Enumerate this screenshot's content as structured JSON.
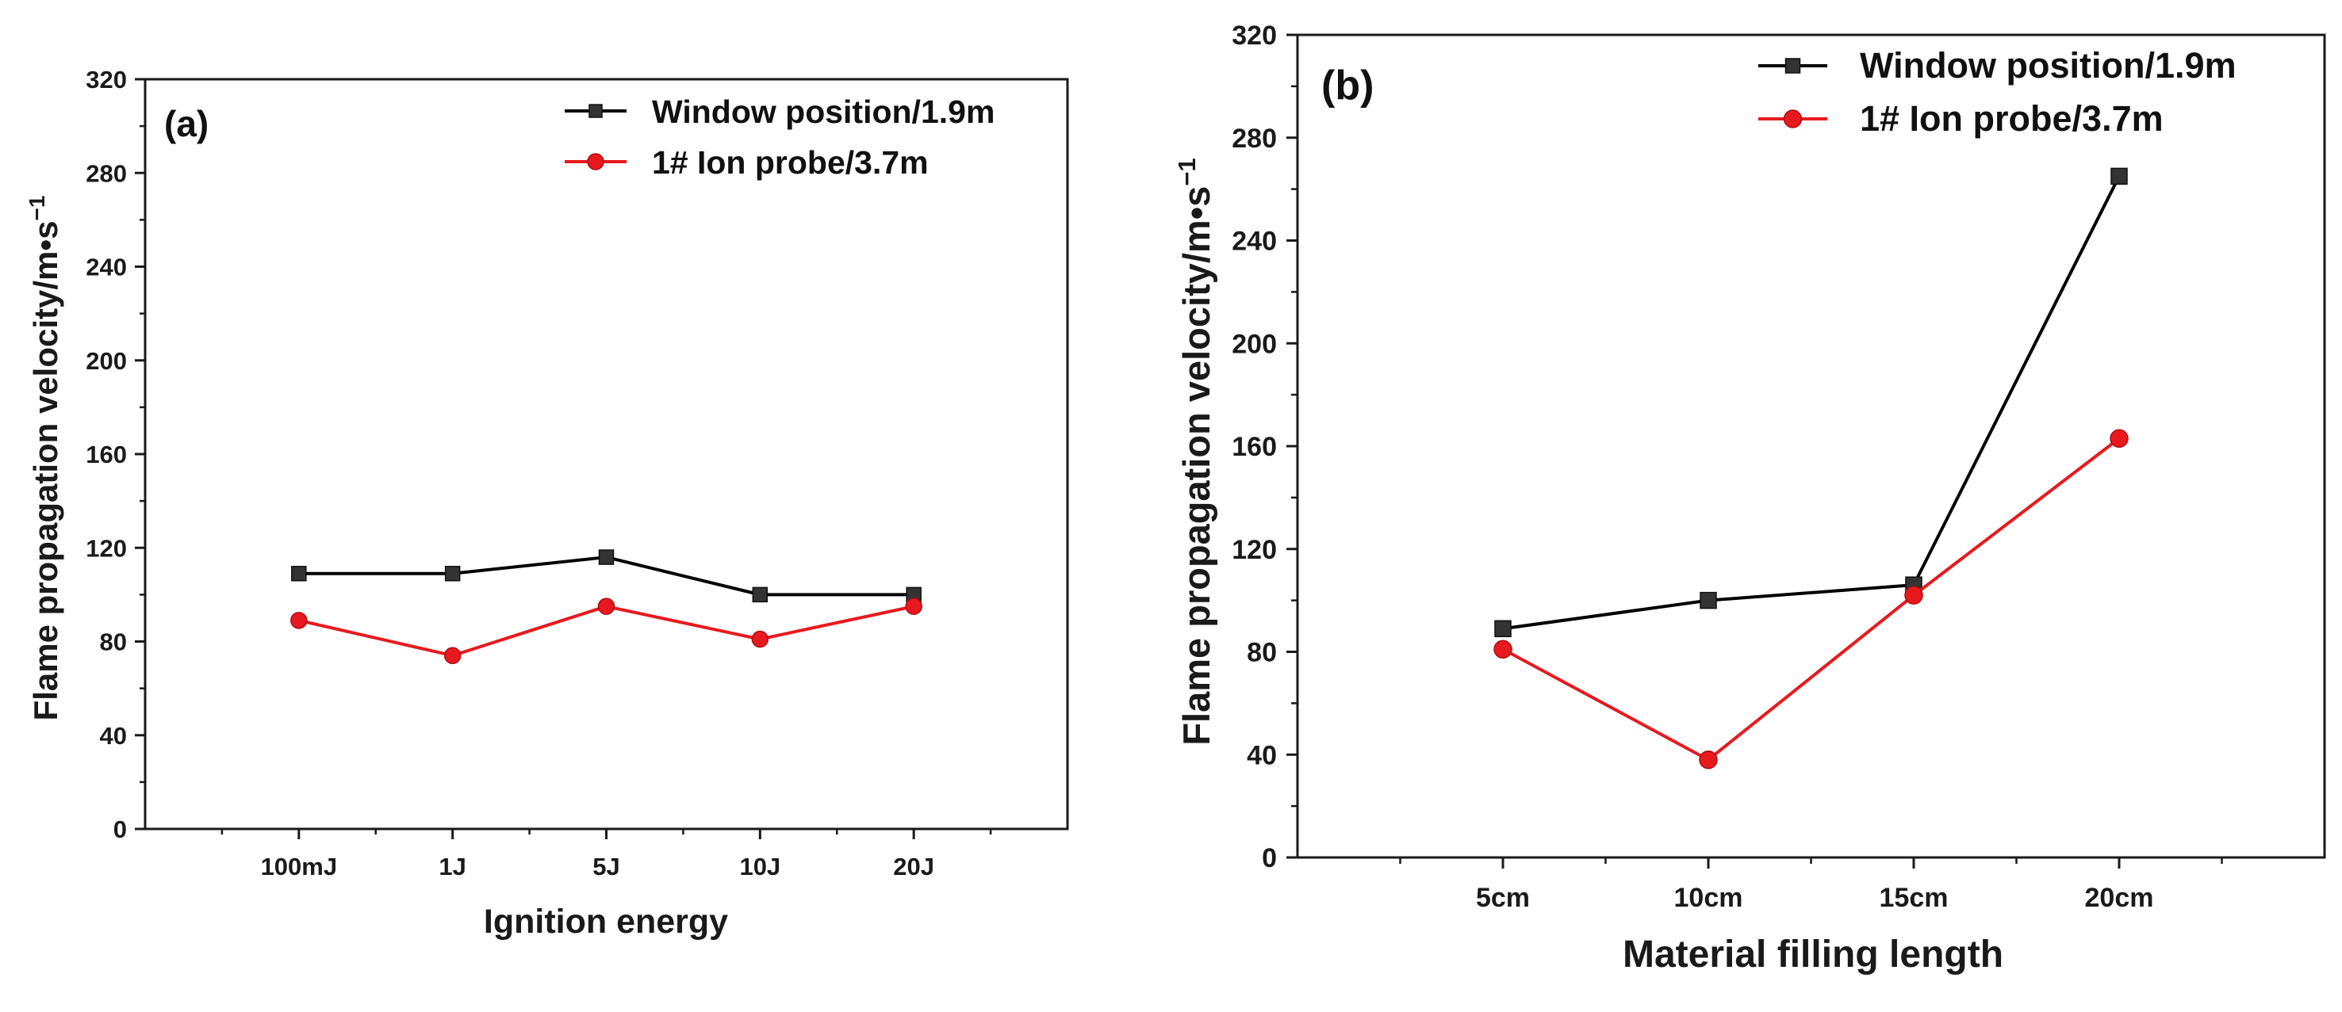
{
  "chart_data": [
    {
      "type": "line",
      "panel_label": "(a)",
      "title": "",
      "xlabel": "Ignition energy",
      "ylabel": "Flame propagation velocity/m•s",
      "ylabel_superscript": "−1",
      "categories": [
        "100mJ",
        "1J",
        "5J",
        "10J",
        "20J"
      ],
      "ylim": [
        0,
        320
      ],
      "yticks": [
        "0",
        "40",
        "80",
        "120",
        "160",
        "200",
        "240",
        "280",
        "320"
      ],
      "grid": false,
      "legend_position": "top-right",
      "series": [
        {
          "name": "Window position/1.9m",
          "color": "#000000",
          "marker": "square",
          "values": [
            109,
            109,
            116,
            100,
            100
          ]
        },
        {
          "name": "1# Ion probe/3.7m",
          "color": "#e8191e",
          "marker": "circle",
          "values": [
            89,
            74,
            95,
            81,
            95
          ]
        }
      ]
    },
    {
      "type": "line",
      "panel_label": "(b)",
      "title": "",
      "xlabel": "Material filling length",
      "ylabel": "Flame propagation velocity/m•s",
      "ylabel_superscript": "−1",
      "categories": [
        "5cm",
        "10cm",
        "15cm",
        "20cm"
      ],
      "ylim": [
        0,
        320
      ],
      "yticks": [
        "0",
        "40",
        "80",
        "120",
        "160",
        "200",
        "240",
        "280",
        "320"
      ],
      "grid": false,
      "legend_position": "top-right",
      "series": [
        {
          "name": "Window position/1.9m",
          "color": "#000000",
          "marker": "square",
          "values": [
            89,
            100,
            106,
            265
          ]
        },
        {
          "name": "1# Ion probe/3.7m",
          "color": "#e8191e",
          "marker": "circle",
          "values": [
            81,
            38,
            102,
            163
          ]
        }
      ]
    }
  ]
}
